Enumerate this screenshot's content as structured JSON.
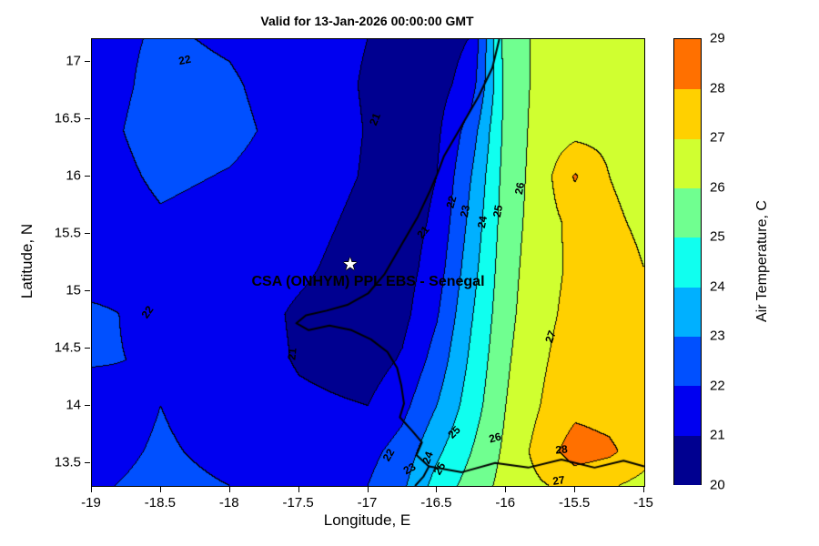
{
  "figure": {
    "title": "Valid for 13-Jan-2026 00:00:00 GMT",
    "xlabel": "Longitude, E",
    "ylabel": "Latitude, N"
  },
  "axes": {
    "xlim": [
      -19,
      -15
    ],
    "ylim": [
      13.3,
      17.2
    ],
    "x_tick_values": [
      -19,
      -18.5,
      -18,
      -17.5,
      -17,
      -16.5,
      -16,
      -15.5,
      -15
    ],
    "x_tick_labels": [
      "-19",
      "-18.5",
      "-18",
      "-17.5",
      "-17",
      "-16.5",
      "-16",
      "-15.5",
      "-15"
    ],
    "y_tick_values": [
      13.5,
      14,
      14.5,
      15,
      15.5,
      16,
      16.5,
      17
    ],
    "y_tick_labels": [
      "13.5",
      "14",
      "14.5",
      "15",
      "15.5",
      "16",
      "16.5",
      "17"
    ]
  },
  "colorbar": {
    "label": "Air Temperature, C",
    "tick_values": [
      20,
      21,
      22,
      23,
      24,
      25,
      26,
      27,
      28,
      29
    ],
    "tick_labels": [
      "20",
      "21",
      "22",
      "23",
      "24",
      "25",
      "26",
      "27",
      "28",
      "29"
    ]
  },
  "annotation": {
    "label": "CSA (ONHYM) PPL EBS  - Senegal",
    "star_lon": -17.13,
    "star_lat": 15.22,
    "text_lon": -17.0,
    "text_lat": 15.08,
    "star_glyph": "★"
  },
  "chart_data": {
    "type": "heatmap",
    "title": "Valid for 13-Jan-2026 00:00:00 GMT",
    "xlabel": "Longitude, E",
    "ylabel": "Latitude, N",
    "zlabel": "Air Temperature, C",
    "zlim": [
      20,
      29
    ],
    "contour_levels": [
      20,
      21,
      22,
      23,
      24,
      25,
      26,
      27,
      28,
      29
    ],
    "band_colors": [
      "#000090",
      "#0000f0",
      "#0050ff",
      "#00b0ff",
      "#10ffef",
      "#70ff90",
      "#d0ff30",
      "#ffd000",
      "#ff7000"
    ],
    "x": [
      -19,
      -18.5,
      -18,
      -17.5,
      -17,
      -16.75,
      -16.5,
      -16.25,
      -16,
      -15.75,
      -15.5,
      -15.25,
      -15
    ],
    "y": [
      17.2,
      16.8,
      16.4,
      16.0,
      15.6,
      15.2,
      14.8,
      14.4,
      14.0,
      13.6,
      13.3
    ],
    "values": [
      [
        21.7,
        22.1,
        21.9,
        21.5,
        21.0,
        20.4,
        20.5,
        21.05,
        25.5,
        26.2,
        26.5,
        26.6,
        26.7
      ],
      [
        21.6,
        22.25,
        22.1,
        21.6,
        20.9,
        20.3,
        20.6,
        21.5,
        25.3,
        26.3,
        26.6,
        26.65,
        26.7
      ],
      [
        21.7,
        22.35,
        22.2,
        21.7,
        20.95,
        20.4,
        20.8,
        22.5,
        25.3,
        26.4,
        26.65,
        26.7,
        26.75
      ],
      [
        21.6,
        22.15,
        21.95,
        21.6,
        20.9,
        20.45,
        21.0,
        23.0,
        25.4,
        26.45,
        28.1,
        27.0,
        26.8
      ],
      [
        21.5,
        21.9,
        21.7,
        21.4,
        20.7,
        20.5,
        21.2,
        23.3,
        25.5,
        26.5,
        27.3,
        27.1,
        26.9
      ],
      [
        21.7,
        21.8,
        21.6,
        21.2,
        20.5,
        20.55,
        21.5,
        23.6,
        25.6,
        26.6,
        27.2,
        27.25,
        27.0
      ],
      [
        22.1,
        21.85,
        21.6,
        20.85,
        20.35,
        20.7,
        21.9,
        23.9,
        25.7,
        26.7,
        27.3,
        27.35,
        27.1
      ],
      [
        22.05,
        21.95,
        21.7,
        20.9,
        20.55,
        21.1,
        22.4,
        24.2,
        25.85,
        26.85,
        27.5,
        27.45,
        27.2
      ],
      [
        21.75,
        22.0,
        21.8,
        21.2,
        21.0,
        21.7,
        23.0,
        24.5,
        26.0,
        27.0,
        27.7,
        27.55,
        27.3
      ],
      [
        21.85,
        22.05,
        21.9,
        21.5,
        21.7,
        22.4,
        23.8,
        25.0,
        26.2,
        27.4,
        28.5,
        28.2,
        27.4
      ],
      [
        21.95,
        22.1,
        22.0,
        21.7,
        22.0,
        22.8,
        24.4,
        25.4,
        26.35,
        26.9,
        27.3,
        27.1,
        26.7
      ]
    ],
    "contour_labels": [
      {
        "value": "22",
        "lon": -18.33,
        "lat": 17.02,
        "rot": -12
      },
      {
        "value": "21",
        "lon": -16.95,
        "lat": 16.5,
        "rot": -68
      },
      {
        "value": "21",
        "lon": -16.6,
        "lat": 15.52,
        "rot": -50
      },
      {
        "value": "22",
        "lon": -16.4,
        "lat": 15.78,
        "rot": -75
      },
      {
        "value": "23",
        "lon": -16.3,
        "lat": 15.7,
        "rot": -78
      },
      {
        "value": "24",
        "lon": -16.17,
        "lat": 15.6,
        "rot": -80
      },
      {
        "value": "25",
        "lon": -16.06,
        "lat": 15.7,
        "rot": -80
      },
      {
        "value": "26",
        "lon": -15.9,
        "lat": 15.9,
        "rot": -80
      },
      {
        "value": "22",
        "lon": -18.6,
        "lat": 14.82,
        "rot": -55
      },
      {
        "value": "21",
        "lon": -17.55,
        "lat": 14.45,
        "rot": -85
      },
      {
        "value": "27",
        "lon": -15.68,
        "lat": 14.6,
        "rot": -70
      },
      {
        "value": "22",
        "lon": -16.85,
        "lat": 13.57,
        "rot": -60
      },
      {
        "value": "23",
        "lon": -16.7,
        "lat": 13.45,
        "rot": -30
      },
      {
        "value": "24",
        "lon": -16.57,
        "lat": 13.55,
        "rot": -70
      },
      {
        "value": "25",
        "lon": -16.48,
        "lat": 13.45,
        "rot": -60
      },
      {
        "value": "25",
        "lon": -16.38,
        "lat": 13.77,
        "rot": -45
      },
      {
        "value": "26",
        "lon": -16.08,
        "lat": 13.72,
        "rot": -15
      },
      {
        "value": "28",
        "lon": -15.6,
        "lat": 13.62,
        "rot": -5
      },
      {
        "value": "27",
        "lon": -15.62,
        "lat": 13.35,
        "rot": -8
      }
    ],
    "coastlines": [
      [
        [
          -16.05,
          17.2
        ],
        [
          -16.1,
          16.95
        ],
        [
          -16.2,
          16.7
        ],
        [
          -16.32,
          16.45
        ],
        [
          -16.45,
          16.18
        ],
        [
          -16.5,
          16.02
        ],
        [
          -16.55,
          15.88
        ],
        [
          -16.64,
          15.65
        ],
        [
          -16.76,
          15.4
        ],
        [
          -16.88,
          15.15
        ],
        [
          -17.0,
          14.98
        ],
        [
          -17.15,
          14.88
        ],
        [
          -17.3,
          14.83
        ],
        [
          -17.45,
          14.79
        ],
        [
          -17.52,
          14.72
        ],
        [
          -17.43,
          14.66
        ],
        [
          -17.28,
          14.7
        ],
        [
          -17.12,
          14.66
        ],
        [
          -16.98,
          14.58
        ],
        [
          -16.86,
          14.47
        ],
        [
          -16.79,
          14.33
        ],
        [
          -16.76,
          14.18
        ],
        [
          -16.74,
          14.02
        ],
        [
          -16.77,
          13.9
        ],
        [
          -16.68,
          13.78
        ],
        [
          -16.61,
          13.68
        ],
        [
          -16.65,
          13.57
        ],
        [
          -16.56,
          13.47
        ],
        [
          -16.6,
          13.38
        ],
        [
          -16.66,
          13.3
        ]
      ],
      [
        [
          -16.56,
          13.47
        ],
        [
          -16.32,
          13.42
        ],
        [
          -16.08,
          13.5
        ],
        [
          -15.84,
          13.46
        ],
        [
          -15.6,
          13.53
        ],
        [
          -15.36,
          13.46
        ],
        [
          -15.15,
          13.52
        ],
        [
          -15.0,
          13.47
        ]
      ]
    ]
  }
}
